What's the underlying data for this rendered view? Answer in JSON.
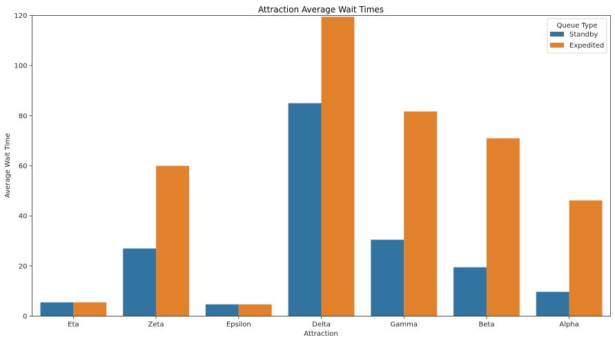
{
  "chart_data": {
    "type": "bar",
    "title": "Attraction Average Wait Times",
    "xlabel": "Attraction",
    "ylabel": "Average Wait Time",
    "ylim": [
      0,
      120
    ],
    "yticks": [
      0,
      20,
      40,
      60,
      80,
      100,
      120
    ],
    "grid": false,
    "categories": [
      "Eta",
      "Zeta",
      "Epsilon",
      "Delta",
      "Gamma",
      "Beta",
      "Alpha"
    ],
    "legend": {
      "title": "Queue Type",
      "placement": "top-right"
    },
    "series": [
      {
        "name": "Standby",
        "color": "#3274a1",
        "values": [
          5.5,
          27,
          4.7,
          85,
          30.5,
          19.5,
          9.7
        ]
      },
      {
        "name": "Expedited",
        "color": "#e1812c",
        "values": [
          5.5,
          60,
          4.7,
          119.5,
          81.7,
          71,
          46.2
        ]
      }
    ]
  }
}
